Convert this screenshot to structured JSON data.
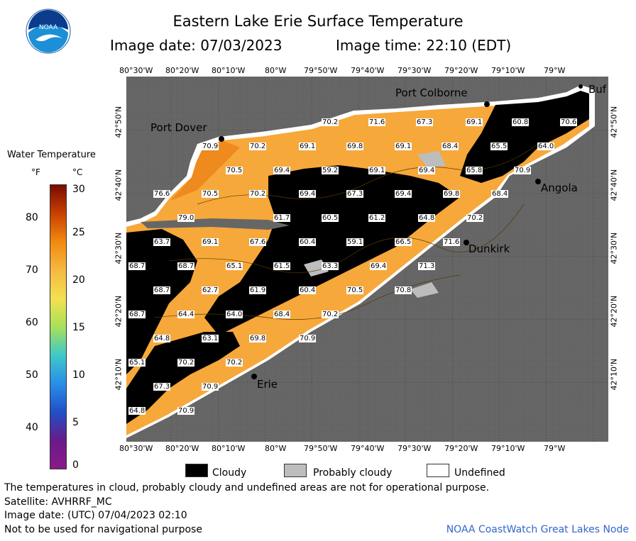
{
  "header": {
    "title": "Eastern Lake Erie Surface Temperature",
    "image_date": "Image date: 07/03/2023",
    "image_time": "Image time: 22:10 (EDT)"
  },
  "longitude_ticks": [
    "80°30'W",
    "80°20'W",
    "80°10'W",
    "80°W",
    "79°50'W",
    "79°40'W",
    "79°30'W",
    "79°20'W",
    "79°10'W",
    "79°W"
  ],
  "latitude_ticks": [
    "42°50'N",
    "42°40'N",
    "42°30'N",
    "42°20'N",
    "42°10'N"
  ],
  "legend": {
    "title": "Water Temperature",
    "unit_f": "°F",
    "unit_c": "°C",
    "f_labels": [
      "80",
      "70",
      "60",
      "50",
      "40"
    ],
    "c_labels": [
      "30",
      "25",
      "20",
      "15",
      "10",
      "5",
      "0"
    ],
    "colors": [
      "#7a0a00",
      "#c84000",
      "#f28a10",
      "#f5b840",
      "#f4e050",
      "#a8e05a",
      "#3ec9c8",
      "#2a8ee8",
      "#2050c8",
      "#6a1a8a",
      "#8a1a8a"
    ]
  },
  "map_key": {
    "cloudy": "Cloudy",
    "probably_cloudy": "Probably cloudy",
    "undefined": "Undefined"
  },
  "cities": {
    "port_colborne": "Port Colborne",
    "port_dover": "Port Dover",
    "angola": "Angola",
    "dunkirk": "Dunkirk",
    "erie": "Erie",
    "buffalo": "Buf"
  },
  "temperature_labels": [
    "70.2",
    "71.6",
    "67.3",
    "69.1",
    "60.8",
    "70.6",
    "70.9",
    "70.2",
    "69.1",
    "69.8",
    "69.1",
    "68.4",
    "65.5",
    "64.0",
    "70.5",
    "69.4",
    "59.2",
    "69.1",
    "69.4",
    "65.8",
    "70.9",
    "76.6",
    "70.5",
    "70.2",
    "69.4",
    "67.3",
    "69.4",
    "69.8",
    "68.4",
    "79.0",
    "61.7",
    "60.5",
    "61.2",
    "64.8",
    "70.2",
    "63.7",
    "69.1",
    "67.6",
    "60.4",
    "59.1",
    "66.5",
    "71.6",
    "68.7",
    "68.7",
    "65.1",
    "61.5",
    "63.3",
    "69.4",
    "71.3",
    "68.7",
    "62.7",
    "61.9",
    "60.4",
    "70.5",
    "70.8",
    "68.7",
    "64.4",
    "64.0",
    "68.4",
    "70.2",
    "64.8",
    "63.1",
    "69.8",
    "70.9",
    "65.1",
    "70.2",
    "70.2",
    "67.3",
    "70.9",
    "64.8",
    "70.9"
  ],
  "footer": {
    "disclaimer": "The temperatures in cloud, probably cloudy and undefined areas are not for operational purpose.",
    "satellite": "Satellite: AVHRRF_MC",
    "utc_date": "Image date: (UTC) 07/04/2023  02:10",
    "navigation": "Not to be used for navigational purpose",
    "credit": "NOAA CoastWatch Great Lakes Node"
  }
}
